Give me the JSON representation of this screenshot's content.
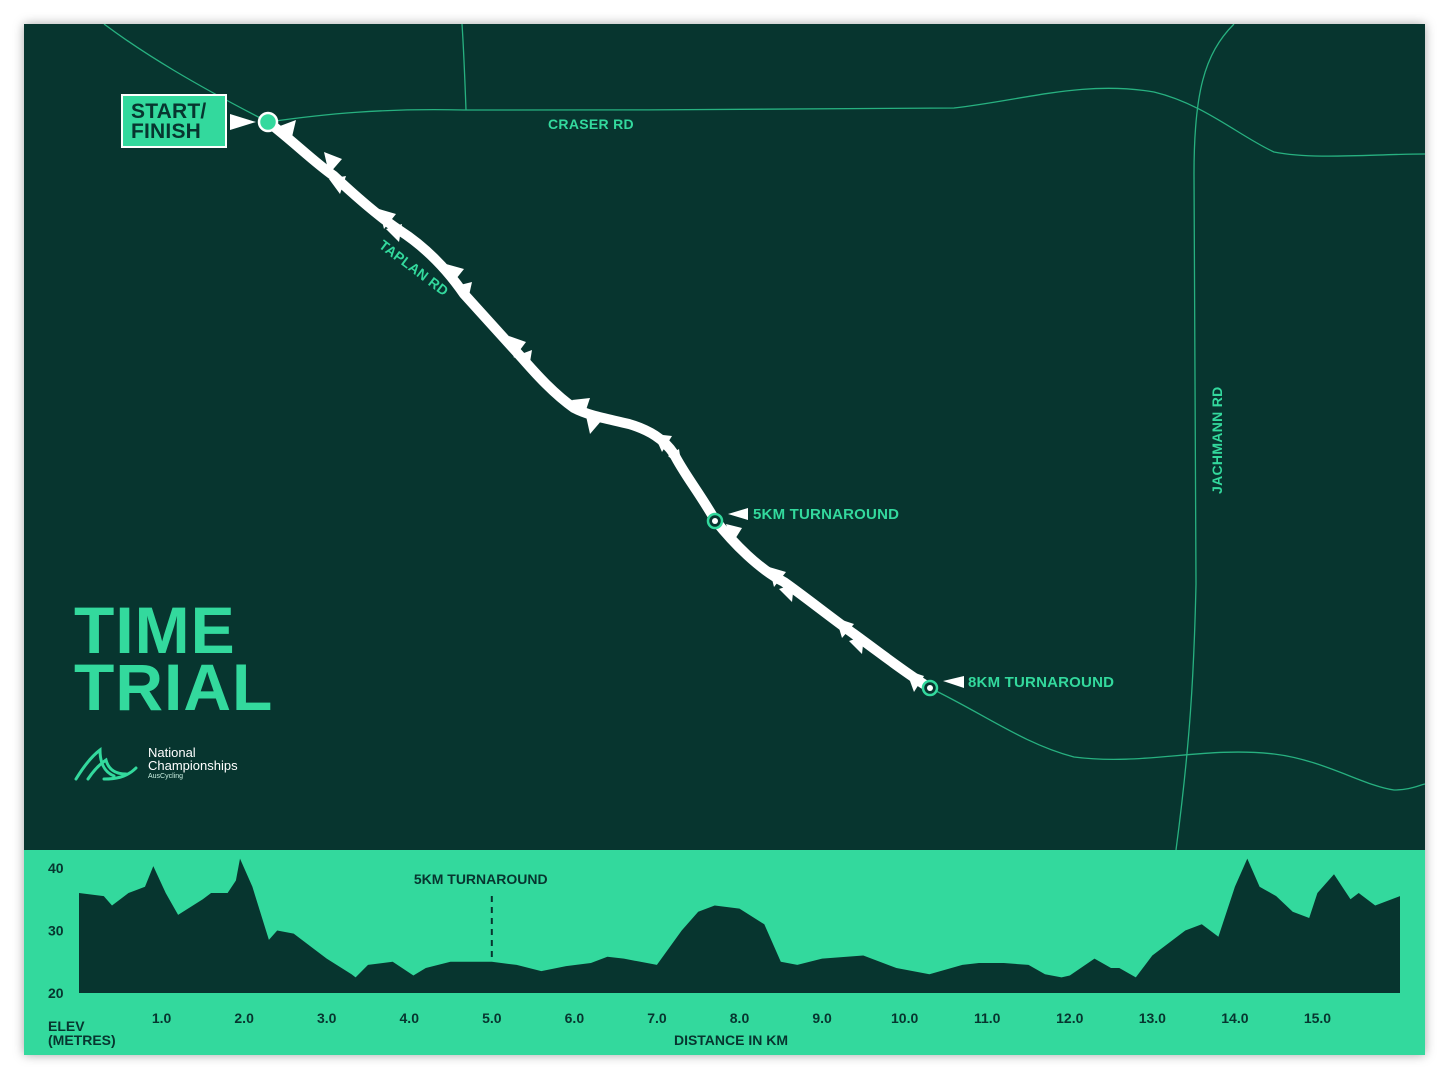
{
  "title": {
    "line1": "TIME",
    "line2": "TRIAL"
  },
  "start_label": {
    "line1": "START/",
    "line2": "FINISH"
  },
  "roads": {
    "craser": "CRASER RD",
    "taplan": "TAPLAN RD",
    "jachmann": "JACHMANN RD"
  },
  "markers": {
    "turn5": "5KM TURNAROUND",
    "turn8": "8KM TURNAROUND"
  },
  "branding": {
    "line1": "National",
    "line2": "Championships",
    "sub": "AusCycling"
  },
  "colors": {
    "background": "#07352f",
    "accent": "#33d99d",
    "route": "#ffffff"
  },
  "chart_data": {
    "type": "area",
    "title": "",
    "xlabel": "DISTANCE IN KM",
    "ylabel": "ELEV (METRES)",
    "ylabel_lines": [
      "ELEV",
      "(METRES)"
    ],
    "ylim": [
      20,
      40
    ],
    "xlim": [
      0,
      16
    ],
    "y_ticks": [
      20,
      30,
      40
    ],
    "x_ticks": [
      1.0,
      2.0,
      3.0,
      4.0,
      5.0,
      6.0,
      7.0,
      8.0,
      9.0,
      10.0,
      11.0,
      12.0,
      13.0,
      14.0,
      15.0
    ],
    "x_tick_labels": [
      "1.0",
      "2.0",
      "3.0",
      "4.0",
      "5.0",
      "6.0",
      "7.0",
      "8.0",
      "9.0",
      "10.0",
      "11.0",
      "12.0",
      "13.0",
      "14.0",
      "15.0"
    ],
    "annotation": {
      "label": "5KM TURNAROUND",
      "x": 5.0
    },
    "series": [
      {
        "x": [
          0,
          0.3,
          0.4,
          0.5,
          0.6,
          0.8,
          0.9,
          1.05,
          1.2,
          1.5,
          1.6,
          1.8,
          1.9,
          1.95,
          2.1,
          2.3,
          2.4,
          2.6,
          2.85,
          3.0,
          3.3,
          3.35,
          3.5,
          3.8,
          4.05,
          4.2,
          4.5,
          5.0,
          5.3,
          5.6,
          5.9,
          6.2,
          6.4,
          6.6,
          6.8,
          7.0,
          7.3,
          7.5,
          7.7,
          8.0,
          8.3,
          8.5,
          8.7,
          9.0,
          9.5,
          9.9,
          10.3,
          10.7,
          10.9,
          11.2,
          11.5,
          11.7,
          11.9,
          12.0,
          12.3,
          12.5,
          12.6,
          12.8,
          13.0,
          13.2,
          13.4,
          13.6,
          13.8,
          14.0,
          14.15,
          14.3,
          14.5,
          14.7,
          14.9,
          15.0,
          15.2,
          15.4,
          15.5,
          15.7,
          15.9,
          16.0
        ],
        "y": [
          36,
          35.5,
          34,
          35,
          36,
          37,
          40.3,
          36,
          32.5,
          35,
          36,
          36,
          38,
          41.5,
          37,
          28.5,
          30,
          29.5,
          27,
          25.5,
          23,
          22.5,
          24.5,
          25,
          22.8,
          24,
          25,
          25,
          24.5,
          23.5,
          24.3,
          24.8,
          25.8,
          25.5,
          25,
          24.5,
          30,
          33,
          34,
          33.5,
          31,
          25,
          24.5,
          25.5,
          26,
          24,
          23,
          24.5,
          24.8,
          24.8,
          24.5,
          23,
          22.5,
          22.8,
          25.5,
          24,
          24,
          22.5,
          26,
          28,
          30,
          31,
          29,
          37,
          41.5,
          37,
          35.5,
          33,
          32,
          36,
          39,
          35,
          36,
          34,
          35,
          35.5
        ]
      }
    ]
  }
}
